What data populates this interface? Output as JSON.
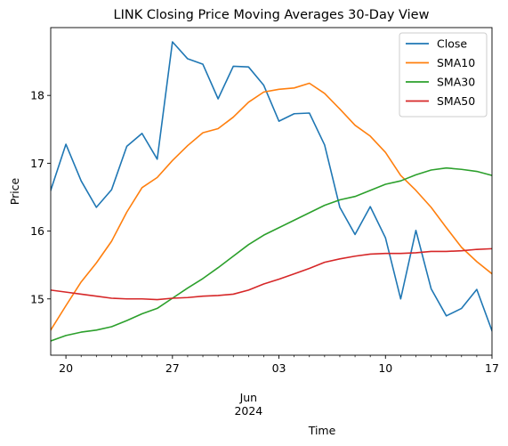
{
  "chart_data": {
    "type": "line",
    "title": "LINK Closing Price Moving Averages 30-Day View",
    "xlabel": "Time",
    "ylabel": "Price",
    "x": [
      "2024-05-19",
      "2024-05-20",
      "2024-05-21",
      "2024-05-22",
      "2024-05-23",
      "2024-05-24",
      "2024-05-25",
      "2024-05-26",
      "2024-05-27",
      "2024-05-28",
      "2024-05-29",
      "2024-05-30",
      "2024-05-31",
      "2024-06-01",
      "2024-06-02",
      "2024-06-03",
      "2024-06-04",
      "2024-06-05",
      "2024-06-06",
      "2024-06-07",
      "2024-06-08",
      "2024-06-09",
      "2024-06-10",
      "2024-06-11",
      "2024-06-12",
      "2024-06-13",
      "2024-06-14",
      "2024-06-15",
      "2024-06-16",
      "2024-06-17"
    ],
    "xlim": [
      "2024-05-19",
      "2024-06-17"
    ],
    "ylim": [
      14.17,
      19.0
    ],
    "x_ticks": [
      {
        "date": "2024-05-20",
        "label": "20"
      },
      {
        "date": "2024-05-27",
        "label": "27"
      },
      {
        "date": "2024-06-03",
        "label": "03"
      },
      {
        "date": "2024-06-10",
        "label": "10"
      },
      {
        "date": "2024-06-17",
        "label": "17"
      }
    ],
    "x_minor_ticks": [
      "2024-05-21",
      "2024-05-22",
      "2024-05-23",
      "2024-05-24",
      "2024-05-25",
      "2024-05-26",
      "2024-05-28",
      "2024-05-29",
      "2024-05-30",
      "2024-05-31",
      "2024-06-01",
      "2024-06-02",
      "2024-06-04",
      "2024-06-05",
      "2024-06-06",
      "2024-06-07",
      "2024-06-08",
      "2024-06-09",
      "2024-06-11",
      "2024-06-12",
      "2024-06-13",
      "2024-06-14",
      "2024-06-15",
      "2024-06-16"
    ],
    "x_secondary_label": {
      "date": "2024-06-01",
      "lines": [
        "Jun",
        "2024"
      ]
    },
    "y_ticks": [
      15,
      16,
      17,
      18
    ],
    "grid": false,
    "legend_position": "top-right",
    "series": [
      {
        "name": "Close",
        "color": "#1f77b4",
        "values": [
          16.6,
          17.28,
          16.74,
          16.35,
          16.61,
          17.25,
          17.44,
          17.06,
          18.79,
          18.54,
          18.46,
          17.95,
          18.43,
          18.42,
          18.15,
          17.62,
          17.73,
          17.74,
          17.27,
          16.35,
          15.95,
          16.36,
          15.9,
          15.0,
          16.01,
          15.15,
          14.75,
          14.86,
          15.14,
          14.53
        ]
      },
      {
        "name": "SMA10",
        "color": "#ff7f0e",
        "values": [
          14.54,
          14.9,
          15.25,
          15.53,
          15.85,
          16.28,
          16.64,
          16.79,
          17.04,
          17.26,
          17.45,
          17.51,
          17.68,
          17.9,
          18.05,
          18.09,
          18.11,
          18.18,
          18.03,
          17.8,
          17.56,
          17.4,
          17.16,
          16.82,
          16.6,
          16.35,
          16.05,
          15.76,
          15.55,
          15.37
        ]
      },
      {
        "name": "SMA30",
        "color": "#2ca02c",
        "values": [
          14.38,
          14.46,
          14.51,
          14.54,
          14.59,
          14.68,
          14.78,
          14.86,
          15.01,
          15.16,
          15.3,
          15.46,
          15.63,
          15.8,
          15.94,
          16.05,
          16.16,
          16.27,
          16.38,
          16.46,
          16.51,
          16.6,
          16.69,
          16.74,
          16.83,
          16.9,
          16.93,
          16.91,
          16.88,
          16.82
        ]
      },
      {
        "name": "SMA50",
        "color": "#d62728",
        "values": [
          15.13,
          15.1,
          15.07,
          15.04,
          15.01,
          15.0,
          15.0,
          14.99,
          15.01,
          15.02,
          15.04,
          15.05,
          15.07,
          15.13,
          15.22,
          15.29,
          15.37,
          15.45,
          15.54,
          15.59,
          15.63,
          15.66,
          15.67,
          15.67,
          15.68,
          15.7,
          15.7,
          15.71,
          15.73,
          15.74
        ]
      }
    ]
  }
}
